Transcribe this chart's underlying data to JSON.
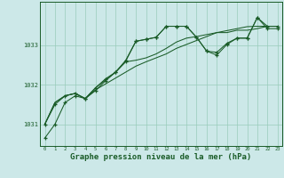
{
  "bg_color": "#cce8e8",
  "grid_color": "#99ccbb",
  "line_color": "#1a5c28",
  "xlabel": "Graphe pression niveau de la mer (hPa)",
  "xlabel_fontsize": 6.5,
  "ylabel_values": [
    1031,
    1032,
    1033
  ],
  "ylim": [
    1030.45,
    1034.1
  ],
  "xlim": [
    -0.5,
    23.5
  ],
  "xticks": [
    0,
    1,
    2,
    3,
    4,
    5,
    6,
    7,
    8,
    9,
    10,
    11,
    12,
    13,
    14,
    15,
    16,
    17,
    18,
    19,
    20,
    21,
    22,
    23
  ],
  "series1": [
    1030.65,
    1031.0,
    1031.55,
    1031.72,
    1031.65,
    1031.85,
    1032.1,
    1032.32,
    1032.6,
    1033.1,
    1033.15,
    1033.2,
    1033.48,
    1033.48,
    1033.48,
    1033.2,
    1032.85,
    1032.75,
    1033.02,
    1033.18,
    1033.18,
    1033.7,
    1033.42,
    1033.42
  ],
  "series2": [
    1031.0,
    1031.5,
    1031.72,
    1031.78,
    1031.65,
    1031.92,
    1032.15,
    1032.32,
    1032.62,
    1033.1,
    1033.15,
    1033.2,
    1033.48,
    1033.48,
    1033.48,
    1033.2,
    1032.85,
    1032.82,
    1033.05,
    1033.18,
    1033.18,
    1033.7,
    1033.48,
    1033.48
  ],
  "series3": [
    1031.0,
    1031.55,
    1031.72,
    1031.78,
    1031.65,
    1031.92,
    1032.12,
    1032.32,
    1032.58,
    1032.62,
    1032.68,
    1032.78,
    1032.92,
    1033.08,
    1033.18,
    1033.22,
    1033.27,
    1033.32,
    1033.32,
    1033.38,
    1033.38,
    1033.42,
    1033.48,
    1033.48
  ],
  "series4": [
    1031.0,
    1031.55,
    1031.72,
    1031.78,
    1031.65,
    1031.87,
    1032.02,
    1032.17,
    1032.32,
    1032.47,
    1032.58,
    1032.68,
    1032.78,
    1032.92,
    1033.02,
    1033.12,
    1033.22,
    1033.32,
    1033.37,
    1033.42,
    1033.47,
    1033.48,
    1033.48,
    1033.48
  ]
}
